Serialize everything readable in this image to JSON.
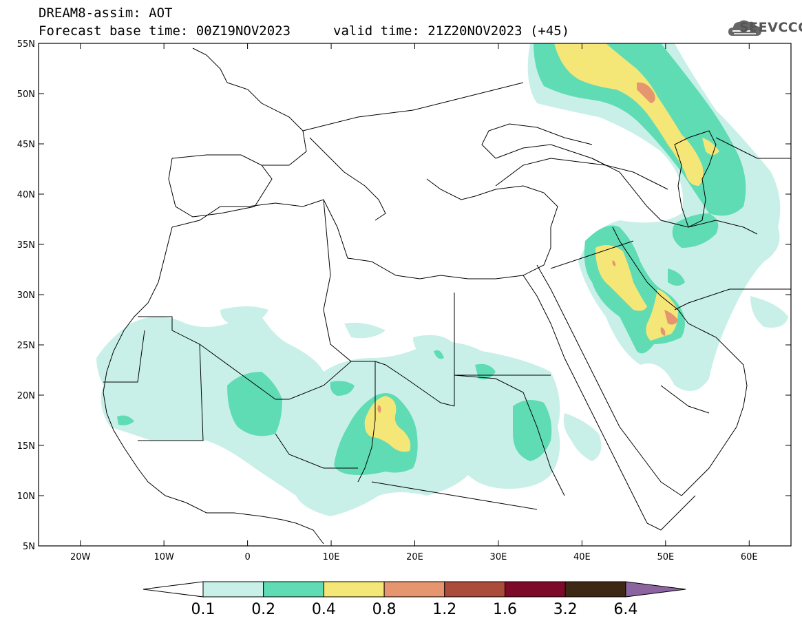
{
  "header": {
    "title": "DREAM8-assim: AOT",
    "base_time": "Forecast base time: 00Z19NOV2023",
    "valid_time": "valid time: 21Z20NOV2023 (+45)",
    "logo_text": "SEEVCCC"
  },
  "map": {
    "lon_range": [
      -25,
      65
    ],
    "lat_range": [
      5,
      55
    ],
    "lat_labels": [
      "55N",
      "50N",
      "45N",
      "40N",
      "35N",
      "30N",
      "25N",
      "20N",
      "15N",
      "10N",
      "5N"
    ],
    "lon_labels": [
      "20W",
      "10W",
      "0",
      "10E",
      "20E",
      "30E",
      "40E",
      "50E",
      "60E"
    ],
    "variable": "AOT"
  },
  "colorbar": {
    "labels": [
      "0.1",
      "0.2",
      "0.4",
      "0.8",
      "1.2",
      "1.6",
      "3.2",
      "6.4"
    ],
    "colors": [
      "#ffffff",
      "#c8f0e8",
      "#5fdcb4",
      "#f5e678",
      "#e6966e",
      "#aa4b3c",
      "#7d0a28",
      "#3c2814",
      "#8c64a0"
    ]
  }
}
